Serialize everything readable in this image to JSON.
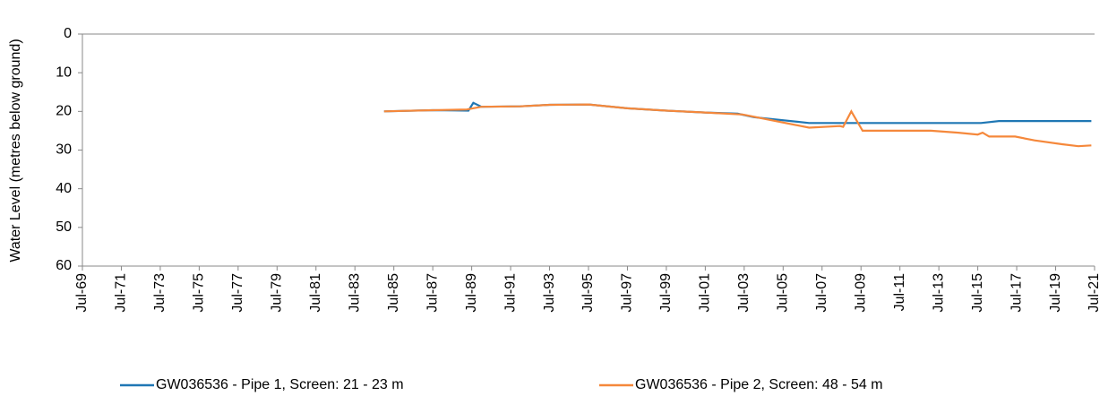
{
  "chart_data": {
    "type": "line",
    "y_label": "Water Level (metres below ground)",
    "ylim": [
      0,
      60
    ],
    "yticks": [
      0,
      10,
      20,
      30,
      40,
      50,
      60
    ],
    "y_inverted": true,
    "xlim": [
      "1969-07",
      "2021-07"
    ],
    "xticks": [
      {
        "value": "1969-07",
        "label": "Jul-69"
      },
      {
        "value": "1971-07",
        "label": "Jul-71"
      },
      {
        "value": "1973-07",
        "label": "Jul-73"
      },
      {
        "value": "1975-07",
        "label": "Jul-75"
      },
      {
        "value": "1977-07",
        "label": "Jul-77"
      },
      {
        "value": "1979-07",
        "label": "Jul-79"
      },
      {
        "value": "1981-07",
        "label": "Jul-81"
      },
      {
        "value": "1983-07",
        "label": "Jul-83"
      },
      {
        "value": "1985-07",
        "label": "Jul-85"
      },
      {
        "value": "1987-07",
        "label": "Jul-87"
      },
      {
        "value": "1989-07",
        "label": "Jul-89"
      },
      {
        "value": "1991-07",
        "label": "Jul-91"
      },
      {
        "value": "1993-07",
        "label": "Jul-93"
      },
      {
        "value": "1995-07",
        "label": "Jul-95"
      },
      {
        "value": "1997-07",
        "label": "Jul-97"
      },
      {
        "value": "1999-07",
        "label": "Jul-99"
      },
      {
        "value": "2001-07",
        "label": "Jul-01"
      },
      {
        "value": "2003-07",
        "label": "Jul-03"
      },
      {
        "value": "2005-07",
        "label": "Jul-05"
      },
      {
        "value": "2007-07",
        "label": "Jul-07"
      },
      {
        "value": "2009-07",
        "label": "Jul-09"
      },
      {
        "value": "2011-07",
        "label": "Jul-11"
      },
      {
        "value": "2013-07",
        "label": "Jul-13"
      },
      {
        "value": "2015-07",
        "label": "Jul-15"
      },
      {
        "value": "2017-07",
        "label": "Jul-17"
      },
      {
        "value": "2019-07",
        "label": "Jul-19"
      },
      {
        "value": "2021-07",
        "label": "Jul-21"
      }
    ],
    "series": [
      {
        "name": "GW036536 - Pipe 1, Screen: 21 - 23 m",
        "color": "#1f77b4",
        "x": [
          "1985-01",
          "1987-07",
          "1989-05",
          "1989-08",
          "1990-01",
          "1992-01",
          "1993-07",
          "1995-07",
          "1997-07",
          "1999-07",
          "2001-07",
          "2003-03",
          "2004-01",
          "2006-11",
          "2010-01",
          "2015-09",
          "2016-08",
          "2019-01",
          "2021-05"
        ],
        "values": [
          20,
          19.7,
          19.8,
          17.8,
          18.8,
          18.7,
          18.3,
          18.2,
          19.2,
          19.8,
          20.3,
          20.6,
          21.5,
          23,
          23,
          23,
          22.5,
          22.5,
          22.5
        ]
      },
      {
        "name": "GW036536 - Pipe 2, Screen: 48 - 54 m",
        "color": "#f5883b",
        "x": [
          "1985-01",
          "1987-07",
          "1989-04",
          "1990-01",
          "1992-01",
          "1993-07",
          "1995-07",
          "1997-07",
          "1999-07",
          "2001-07",
          "2003-06",
          "2006-11",
          "2008-06",
          "2008-08",
          "2009-01",
          "2009-08",
          "2013-02",
          "2014-07",
          "2015-07",
          "2015-10",
          "2016-02",
          "2017-06",
          "2018-06",
          "2019-11",
          "2020-09",
          "2021-05"
        ],
        "values": [
          20,
          19.7,
          19.5,
          18.8,
          18.7,
          18.3,
          18.2,
          19.2,
          19.8,
          20.3,
          20.8,
          24.2,
          23.8,
          24,
          20,
          25,
          25,
          25.5,
          26,
          25.5,
          26.5,
          26.5,
          27.5,
          28.5,
          29,
          28.8
        ]
      }
    ],
    "legend": "bottom"
  }
}
